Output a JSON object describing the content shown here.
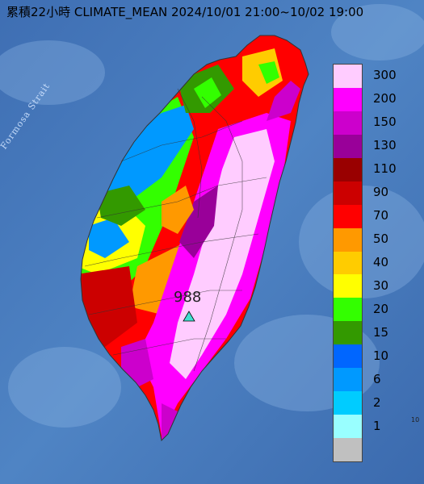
{
  "title": "累積22小時 CLIMATE_MEAN 2024/10/01 21:00~10/02 19:00",
  "strait_label": "Formosa Strait",
  "station": {
    "value": "988",
    "marker_color": "#40e0d0"
  },
  "edge_mark": "10",
  "legend": [
    {
      "label": "300",
      "color": "#ffccff"
    },
    {
      "label": "200",
      "color": "#ff00ff"
    },
    {
      "label": "150",
      "color": "#cc00cc"
    },
    {
      "label": "130",
      "color": "#990099"
    },
    {
      "label": "110",
      "color": "#990000"
    },
    {
      "label": "90",
      "color": "#cc0000"
    },
    {
      "label": "70",
      "color": "#ff0000"
    },
    {
      "label": "50",
      "color": "#ff9900"
    },
    {
      "label": "40",
      "color": "#ffcc00"
    },
    {
      "label": "30",
      "color": "#ffff00"
    },
    {
      "label": "20",
      "color": "#33ff00"
    },
    {
      "label": "15",
      "color": "#339900"
    },
    {
      "label": "10",
      "color": "#0066ff"
    },
    {
      "label": "6",
      "color": "#0099ff"
    },
    {
      "label": "2",
      "color": "#00ccff"
    },
    {
      "label": "1",
      "color": "#99ffff"
    },
    {
      "label": "",
      "color": "#c0c0c0"
    }
  ]
}
